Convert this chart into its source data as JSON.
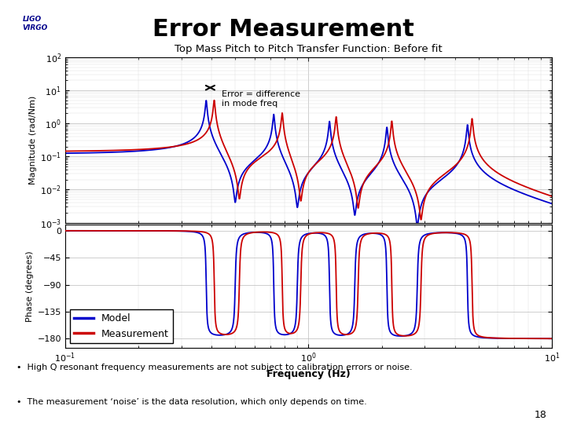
{
  "title": "Error Measurement",
  "subtitle": "Top Mass Pitch to Pitch Transfer Function: Before fit",
  "annotation_text": "Error = difference\nin mode freq",
  "xlabel": "Frequency (Hz)",
  "ylabel_mag": "Magnitude (rad/Nm)",
  "ylabel_phase": "Phase (degrees)",
  "legend_model": "Model",
  "legend_meas": "Measurement",
  "bullet1": "High Q resonant frequency measurements are not subject to calibration errors or noise.",
  "bullet2": "The measurement ‘noise’ is the data resolution, which only depends on time.",
  "slide_number": "18",
  "model_color": "#0000cc",
  "meas_color": "#cc0000",
  "title_color": "#000000",
  "subtitle_color": "#000000",
  "bg_color": "#ffffff",
  "pink_line_color": "#cc0066",
  "freq_min": 0.1,
  "freq_max": 10.0,
  "mag_ylim_min": -3,
  "mag_ylim_max": 2,
  "phase_yticks": [
    0,
    -45,
    -90,
    -135,
    -180
  ],
  "phase_ylim": [
    -195,
    10
  ],
  "model_res": [
    0.38,
    0.72,
    1.22,
    2.1,
    4.5
  ],
  "model_anti": [
    0.5,
    0.9,
    1.55,
    2.8
  ],
  "meas_res": [
    0.41,
    0.78,
    1.3,
    2.2,
    4.7
  ],
  "meas_anti": [
    0.52,
    0.93,
    1.6,
    2.9
  ],
  "Qr_model": 80,
  "Qa_model": 60,
  "Qr_meas": 80,
  "Qa_meas": 60,
  "base_model": 0.12,
  "base_meas": 0.14
}
